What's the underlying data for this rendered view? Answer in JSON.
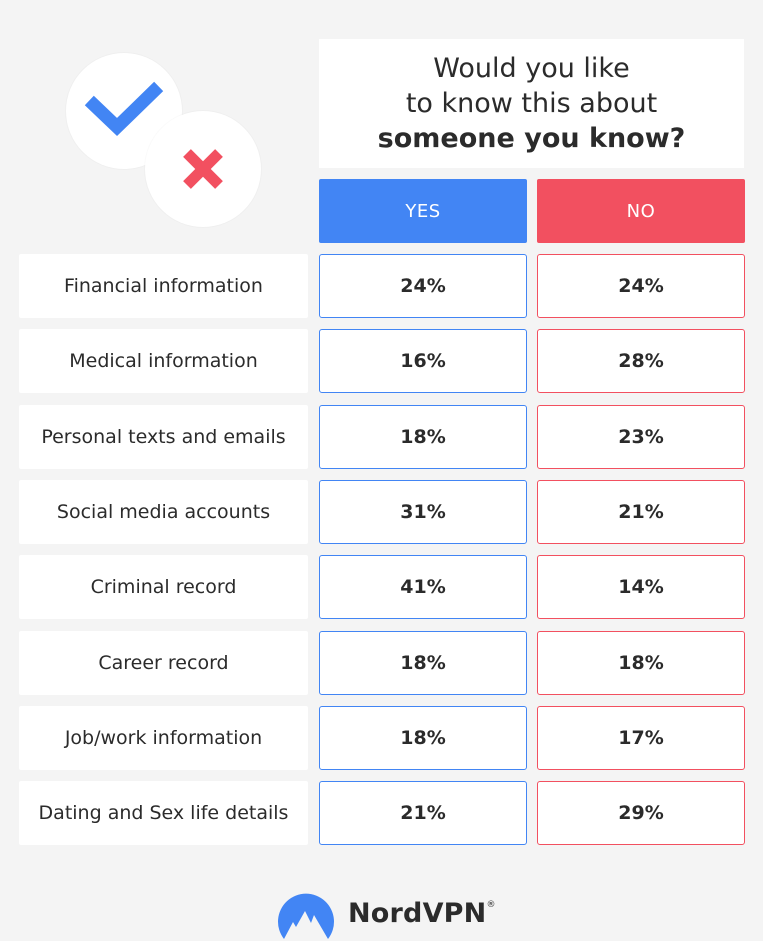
{
  "colors": {
    "yes": "#4285f4",
    "no": "#f25060",
    "background": "#f4f4f4",
    "text": "#2b2b2b"
  },
  "icons": {
    "check": "check-icon",
    "cross": "cross-icon",
    "logo": "nordvpn-logo-icon"
  },
  "question": {
    "line1": "Would you like",
    "line2": "to know this about",
    "line3": "someone you know?"
  },
  "brand": {
    "name": "NordVPN",
    "registered": "®"
  },
  "chart_data": {
    "type": "table",
    "title": "Would you like to know this about someone you know?",
    "columns": [
      "YES",
      "NO"
    ],
    "unit": "%",
    "rows": [
      {
        "label": "Financial information",
        "yes": "24%",
        "no": "24%"
      },
      {
        "label": "Medical information",
        "yes": "16%",
        "no": "28%"
      },
      {
        "label": "Personal texts and emails",
        "yes": "18%",
        "no": "23%"
      },
      {
        "label": "Social media accounts",
        "yes": "31%",
        "no": "21%"
      },
      {
        "label": "Criminal record",
        "yes": "41%",
        "no": "14%"
      },
      {
        "label": "Career record",
        "yes": "18%",
        "no": "18%"
      },
      {
        "label": "Job/work information",
        "yes": "18%",
        "no": "17%"
      },
      {
        "label": "Dating and Sex life details",
        "yes": "21%",
        "no": "29%"
      }
    ]
  }
}
